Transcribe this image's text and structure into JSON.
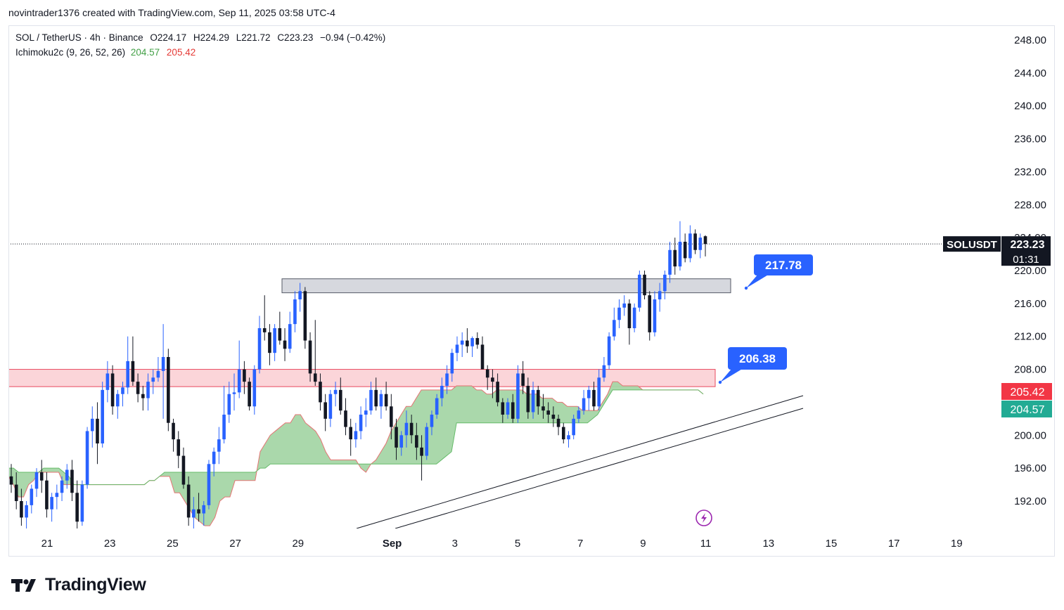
{
  "header": {
    "text": "novintrader1376 created with TradingView.com, Sep 11, 2025 03:58 UTC-4"
  },
  "legend": {
    "symbol": "SOL / TetherUS · 4h · Binance",
    "open": "O224.17",
    "high": "H224.29",
    "low": "L221.72",
    "close": "C223.23",
    "change": "−0.94 (−0.42%)",
    "indicator": "Ichimoku2c (9, 26, 52, 26)",
    "ind_val1": "204.57",
    "ind_val2": "205.42"
  },
  "footer": {
    "brand": "TradingView"
  },
  "chart_data": {
    "type": "candlestick",
    "symbol": "SOLUSDT",
    "timeframe": "4h",
    "x_tick_labels": [
      "21",
      "23",
      "25",
      "27",
      "29",
      "Sep",
      "3",
      "5",
      "7",
      "9",
      "11",
      "13",
      "15",
      "17",
      "19"
    ],
    "y_tick_labels": [
      "248.00",
      "244.00",
      "240.00",
      "236.00",
      "232.00",
      "228.00",
      "224.00",
      "220.00",
      "216.00",
      "212.00",
      "208.00",
      "200.00",
      "196.00",
      "192.00"
    ],
    "ylim": [
      189.5,
      249.5
    ],
    "last_price": {
      "label": "SOLUSDT",
      "value": 223.23,
      "value_text": "223.23",
      "countdown": "01:31"
    },
    "ichimoku_labels": [
      {
        "value": 205.42,
        "text": "205.42",
        "color": "#f23645"
      },
      {
        "value": 204.57,
        "text": "204.57",
        "color": "#22ab94"
      }
    ],
    "zones": [
      {
        "name": "resistance",
        "from_day": 28.75,
        "to_day": 12.25,
        "low": 217.3,
        "high": 219.0,
        "color": "#d1d4dc"
      },
      {
        "name": "support",
        "from_day": 20.0,
        "to_day": 11.35,
        "low": 205.9,
        "high": 208.0,
        "color": "#f8c8cd"
      }
    ],
    "callouts": [
      {
        "text": "217.78",
        "target_day": 12.35,
        "target_value": 218.0
      },
      {
        "text": "206.38",
        "target_day": 11.5,
        "target_value": 206.8
      }
    ],
    "trendlines": [
      {
        "from": [
          "Aug 31.9",
          189.6
        ],
        "to": [
          "Sep 14.3",
          205.5
        ]
      },
      {
        "from": [
          "Sep 1.1",
          189.6
        ],
        "to": [
          "Sep 14.3",
          204.0
        ]
      }
    ],
    "candles": [
      {
        "o": 195.0,
        "h": 196.5,
        "l": 193.0,
        "c": 194.0
      },
      {
        "o": 194.0,
        "h": 195.5,
        "l": 191.0,
        "c": 192.0
      },
      {
        "o": 192.0,
        "h": 193.5,
        "l": 189.0,
        "c": 190.0
      },
      {
        "o": 190.0,
        "h": 192.0,
        "l": 188.5,
        "c": 191.5
      },
      {
        "o": 191.5,
        "h": 194.0,
        "l": 190.5,
        "c": 193.5
      },
      {
        "o": 193.5,
        "h": 196.0,
        "l": 192.5,
        "c": 195.5
      },
      {
        "o": 195.5,
        "h": 197.0,
        "l": 193.0,
        "c": 194.5
      },
      {
        "o": 194.5,
        "h": 195.5,
        "l": 190.0,
        "c": 191.0
      },
      {
        "o": 191.0,
        "h": 193.0,
        "l": 189.5,
        "c": 192.5
      },
      {
        "o": 192.5,
        "h": 194.0,
        "l": 191.0,
        "c": 193.0
      },
      {
        "o": 193.0,
        "h": 195.0,
        "l": 192.0,
        "c": 194.5
      },
      {
        "o": 194.5,
        "h": 196.5,
        "l": 193.5,
        "c": 195.8
      },
      {
        "o": 195.8,
        "h": 197.0,
        "l": 192.0,
        "c": 193.0
      },
      {
        "o": 193.0,
        "h": 194.5,
        "l": 188.5,
        "c": 189.5
      },
      {
        "o": 189.5,
        "h": 194.5,
        "l": 189.0,
        "c": 194.0
      },
      {
        "o": 194.0,
        "h": 201.0,
        "l": 193.5,
        "c": 200.5
      },
      {
        "o": 200.5,
        "h": 203.5,
        "l": 198.5,
        "c": 202.0
      },
      {
        "o": 202.0,
        "h": 204.0,
        "l": 196.5,
        "c": 199.0
      },
      {
        "o": 199.0,
        "h": 206.5,
        "l": 198.5,
        "c": 205.5
      },
      {
        "o": 205.5,
        "h": 209.0,
        "l": 204.0,
        "c": 207.5
      },
      {
        "o": 207.5,
        "h": 208.5,
        "l": 202.5,
        "c": 203.5
      },
      {
        "o": 203.5,
        "h": 205.5,
        "l": 202.0,
        "c": 205.0
      },
      {
        "o": 205.0,
        "h": 206.5,
        "l": 203.5,
        "c": 205.8
      },
      {
        "o": 205.8,
        "h": 212.0,
        "l": 205.0,
        "c": 209.0
      },
      {
        "o": 209.0,
        "h": 212.0,
        "l": 206.0,
        "c": 206.5
      },
      {
        "o": 206.5,
        "h": 207.5,
        "l": 204.0,
        "c": 205.0
      },
      {
        "o": 205.0,
        "h": 206.0,
        "l": 203.0,
        "c": 204.5
      },
      {
        "o": 204.5,
        "h": 207.5,
        "l": 203.0,
        "c": 206.5
      },
      {
        "o": 206.5,
        "h": 208.0,
        "l": 205.0,
        "c": 207.0
      },
      {
        "o": 207.0,
        "h": 209.5,
        "l": 206.5,
        "c": 207.8
      },
      {
        "o": 207.8,
        "h": 213.5,
        "l": 202.0,
        "c": 209.5
      },
      {
        "o": 209.5,
        "h": 210.5,
        "l": 200.5,
        "c": 201.5
      },
      {
        "o": 201.5,
        "h": 202.0,
        "l": 198.0,
        "c": 199.5
      },
      {
        "o": 199.5,
        "h": 200.5,
        "l": 196.0,
        "c": 197.5
      },
      {
        "o": 197.5,
        "h": 198.5,
        "l": 193.5,
        "c": 194.0
      },
      {
        "o": 194.0,
        "h": 195.0,
        "l": 189.0,
        "c": 190.0
      },
      {
        "o": 190.0,
        "h": 192.5,
        "l": 188.0,
        "c": 191.0
      },
      {
        "o": 191.0,
        "h": 193.0,
        "l": 189.5,
        "c": 190.5
      },
      {
        "o": 190.5,
        "h": 192.0,
        "l": 189.0,
        "c": 191.5
      },
      {
        "o": 191.5,
        "h": 197.0,
        "l": 191.0,
        "c": 196.5
      },
      {
        "o": 196.5,
        "h": 198.5,
        "l": 195.0,
        "c": 198.0
      },
      {
        "o": 198.0,
        "h": 201.0,
        "l": 196.5,
        "c": 199.5
      },
      {
        "o": 199.5,
        "h": 206.0,
        "l": 199.0,
        "c": 202.5
      },
      {
        "o": 202.5,
        "h": 206.5,
        "l": 201.5,
        "c": 205.0
      },
      {
        "o": 205.0,
        "h": 207.5,
        "l": 203.0,
        "c": 205.2
      },
      {
        "o": 205.2,
        "h": 211.5,
        "l": 204.5,
        "c": 208.0
      },
      {
        "o": 208.0,
        "h": 209.0,
        "l": 205.0,
        "c": 206.5
      },
      {
        "o": 206.5,
        "h": 207.0,
        "l": 203.0,
        "c": 203.5
      },
      {
        "o": 203.5,
        "h": 208.5,
        "l": 202.5,
        "c": 208.0
      },
      {
        "o": 208.0,
        "h": 214.5,
        "l": 207.5,
        "c": 213.0
      },
      {
        "o": 213.0,
        "h": 217.0,
        "l": 211.5,
        "c": 212.5
      },
      {
        "o": 212.5,
        "h": 213.5,
        "l": 208.5,
        "c": 210.0
      },
      {
        "o": 210.0,
        "h": 213.5,
        "l": 209.0,
        "c": 213.0
      },
      {
        "o": 213.0,
        "h": 215.0,
        "l": 211.0,
        "c": 211.5
      },
      {
        "o": 211.5,
        "h": 213.0,
        "l": 209.0,
        "c": 210.5
      },
      {
        "o": 210.5,
        "h": 215.0,
        "l": 210.0,
        "c": 213.5
      },
      {
        "o": 213.5,
        "h": 217.5,
        "l": 212.5,
        "c": 216.5
      },
      {
        "o": 216.5,
        "h": 218.5,
        "l": 215.0,
        "c": 217.5
      },
      {
        "o": 217.5,
        "h": 218.0,
        "l": 210.5,
        "c": 211.5
      },
      {
        "o": 211.5,
        "h": 212.5,
        "l": 206.5,
        "c": 207.5
      },
      {
        "o": 207.5,
        "h": 214.0,
        "l": 206.0,
        "c": 206.5
      },
      {
        "o": 206.5,
        "h": 207.5,
        "l": 203.0,
        "c": 204.0
      },
      {
        "o": 204.0,
        "h": 205.0,
        "l": 200.5,
        "c": 202.0
      },
      {
        "o": 202.0,
        "h": 205.5,
        "l": 201.0,
        "c": 205.0
      },
      {
        "o": 205.0,
        "h": 206.5,
        "l": 203.5,
        "c": 205.5
      },
      {
        "o": 205.5,
        "h": 207.0,
        "l": 202.5,
        "c": 203.0
      },
      {
        "o": 203.0,
        "h": 204.5,
        "l": 200.0,
        "c": 201.0
      },
      {
        "o": 201.0,
        "h": 202.0,
        "l": 197.5,
        "c": 199.5
      },
      {
        "o": 199.5,
        "h": 201.5,
        "l": 198.5,
        "c": 200.5
      },
      {
        "o": 200.5,
        "h": 203.5,
        "l": 199.5,
        "c": 202.5
      },
      {
        "o": 202.5,
        "h": 204.5,
        "l": 201.0,
        "c": 203.0
      },
      {
        "o": 203.0,
        "h": 206.5,
        "l": 202.5,
        "c": 205.5
      },
      {
        "o": 205.5,
        "h": 207.0,
        "l": 203.0,
        "c": 203.5
      },
      {
        "o": 203.5,
        "h": 205.5,
        "l": 202.0,
        "c": 205.0
      },
      {
        "o": 205.0,
        "h": 206.5,
        "l": 203.0,
        "c": 203.5
      },
      {
        "o": 203.5,
        "h": 205.0,
        "l": 199.5,
        "c": 201.0
      },
      {
        "o": 201.0,
        "h": 202.0,
        "l": 197.0,
        "c": 198.5
      },
      {
        "o": 198.5,
        "h": 200.5,
        "l": 197.5,
        "c": 200.0
      },
      {
        "o": 200.0,
        "h": 203.0,
        "l": 198.5,
        "c": 201.5
      },
      {
        "o": 201.5,
        "h": 202.5,
        "l": 199.0,
        "c": 200.0
      },
      {
        "o": 200.0,
        "h": 201.5,
        "l": 197.0,
        "c": 198.5
      },
      {
        "o": 198.5,
        "h": 200.0,
        "l": 194.5,
        "c": 197.5
      },
      {
        "o": 197.5,
        "h": 201.5,
        "l": 197.0,
        "c": 201.0
      },
      {
        "o": 201.0,
        "h": 203.0,
        "l": 200.0,
        "c": 202.5
      },
      {
        "o": 202.5,
        "h": 205.0,
        "l": 202.0,
        "c": 204.5
      },
      {
        "o": 204.5,
        "h": 207.0,
        "l": 203.5,
        "c": 206.0
      },
      {
        "o": 206.0,
        "h": 208.5,
        "l": 205.0,
        "c": 207.5
      },
      {
        "o": 207.5,
        "h": 210.5,
        "l": 206.5,
        "c": 210.0
      },
      {
        "o": 210.0,
        "h": 212.0,
        "l": 209.0,
        "c": 211.0
      },
      {
        "o": 211.0,
        "h": 212.5,
        "l": 209.5,
        "c": 211.5
      },
      {
        "o": 211.5,
        "h": 213.0,
        "l": 210.0,
        "c": 210.8
      },
      {
        "o": 210.8,
        "h": 212.0,
        "l": 209.5,
        "c": 211.8
      },
      {
        "o": 211.8,
        "h": 212.5,
        "l": 210.5,
        "c": 211.0
      },
      {
        "o": 211.0,
        "h": 212.0,
        "l": 208.5,
        "c": 208.0
      },
      {
        "o": 208.0,
        "h": 208.5,
        "l": 205.5,
        "c": 207.0
      },
      {
        "o": 207.0,
        "h": 208.0,
        "l": 204.5,
        "c": 206.5
      },
      {
        "o": 206.5,
        "h": 207.5,
        "l": 203.5,
        "c": 204.0
      },
      {
        "o": 204.0,
        "h": 204.5,
        "l": 201.5,
        "c": 202.5
      },
      {
        "o": 202.5,
        "h": 204.5,
        "l": 202.0,
        "c": 204.0
      },
      {
        "o": 204.0,
        "h": 205.0,
        "l": 201.5,
        "c": 202.0
      },
      {
        "o": 202.0,
        "h": 208.5,
        "l": 201.5,
        "c": 207.5
      },
      {
        "o": 207.5,
        "h": 209.0,
        "l": 205.0,
        "c": 206.0
      },
      {
        "o": 206.0,
        "h": 207.0,
        "l": 202.0,
        "c": 202.8
      },
      {
        "o": 202.8,
        "h": 206.5,
        "l": 202.0,
        "c": 205.5
      },
      {
        "o": 205.5,
        "h": 206.0,
        "l": 202.5,
        "c": 203.5
      },
      {
        "o": 203.5,
        "h": 205.0,
        "l": 202.0,
        "c": 203.0
      },
      {
        "o": 203.0,
        "h": 204.0,
        "l": 201.5,
        "c": 202.5
      },
      {
        "o": 202.5,
        "h": 203.5,
        "l": 201.0,
        "c": 202.0
      },
      {
        "o": 202.0,
        "h": 202.5,
        "l": 200.0,
        "c": 201.0
      },
      {
        "o": 201.0,
        "h": 201.5,
        "l": 199.0,
        "c": 199.5
      },
      {
        "o": 199.5,
        "h": 200.5,
        "l": 198.5,
        "c": 200.0
      },
      {
        "o": 200.0,
        "h": 202.5,
        "l": 199.5,
        "c": 202.0
      },
      {
        "o": 202.0,
        "h": 203.5,
        "l": 201.5,
        "c": 203.0
      },
      {
        "o": 203.0,
        "h": 205.5,
        "l": 202.5,
        "c": 204.5
      },
      {
        "o": 204.5,
        "h": 206.0,
        "l": 203.0,
        "c": 205.5
      },
      {
        "o": 205.5,
        "h": 206.5,
        "l": 203.0,
        "c": 203.5
      },
      {
        "o": 203.5,
        "h": 208.0,
        "l": 203.0,
        "c": 207.0
      },
      {
        "o": 207.0,
        "h": 209.5,
        "l": 206.5,
        "c": 208.5
      },
      {
        "o": 208.5,
        "h": 212.5,
        "l": 208.0,
        "c": 212.0
      },
      {
        "o": 212.0,
        "h": 215.5,
        "l": 211.5,
        "c": 214.0
      },
      {
        "o": 214.0,
        "h": 216.5,
        "l": 213.0,
        "c": 215.5
      },
      {
        "o": 215.5,
        "h": 217.0,
        "l": 214.5,
        "c": 216.0
      },
      {
        "o": 216.0,
        "h": 216.5,
        "l": 211.0,
        "c": 213.0
      },
      {
        "o": 213.0,
        "h": 216.0,
        "l": 212.5,
        "c": 215.5
      },
      {
        "o": 215.5,
        "h": 220.0,
        "l": 215.0,
        "c": 219.5
      },
      {
        "o": 219.5,
        "h": 220.0,
        "l": 216.5,
        "c": 217.0
      },
      {
        "o": 217.0,
        "h": 217.5,
        "l": 211.5,
        "c": 212.5
      },
      {
        "o": 212.5,
        "h": 217.5,
        "l": 212.0,
        "c": 216.5
      },
      {
        "o": 216.5,
        "h": 218.5,
        "l": 215.0,
        "c": 217.5
      },
      {
        "o": 217.5,
        "h": 220.0,
        "l": 216.5,
        "c": 219.5
      },
      {
        "o": 219.5,
        "h": 223.5,
        "l": 218.5,
        "c": 222.5
      },
      {
        "o": 222.5,
        "h": 224.0,
        "l": 219.5,
        "c": 220.5
      },
      {
        "o": 220.5,
        "h": 226.0,
        "l": 220.0,
        "c": 223.5
      },
      {
        "o": 223.5,
        "h": 224.5,
        "l": 221.0,
        "c": 221.5
      },
      {
        "o": 221.5,
        "h": 225.5,
        "l": 221.0,
        "c": 224.5
      },
      {
        "o": 224.5,
        "h": 225.0,
        "l": 222.0,
        "c": 222.5
      },
      {
        "o": 222.5,
        "h": 224.5,
        "l": 221.5,
        "c": 224.0
      },
      {
        "o": 224.17,
        "h": 224.29,
        "l": 221.72,
        "c": 223.23
      }
    ],
    "cloud_a": [
      195.0,
      194.0,
      192.5,
      192.5,
      194.0,
      194.5,
      195.5,
      195.5,
      195.5,
      195.5,
      195.5,
      194.0,
      194.0,
      194.0,
      194.0,
      194.0,
      194.0,
      194.0,
      194.0,
      194.0,
      194.0,
      194.0,
      194.0,
      194.0,
      194.0,
      194.0,
      194.0,
      194.0,
      194.5,
      194.5,
      195.0,
      195.0,
      195.0,
      193.0,
      193.0,
      192.0,
      191.0,
      190.0,
      189.5,
      189.0,
      189.0,
      190.0,
      192.0,
      192.5,
      192.5,
      194.5,
      194.5,
      194.5,
      194.5,
      194.5,
      198.0,
      199.0,
      200.0,
      200.5,
      201.0,
      201.5,
      201.5,
      202.5,
      202.5,
      201.5,
      201.0,
      200.5,
      199.5,
      198.0,
      197.0,
      197.0,
      197.0,
      197.0,
      197.0,
      197.0,
      196.0,
      195.5,
      196.5,
      197.0,
      198.0,
      199.0,
      200.5,
      201.5,
      202.5,
      203.5,
      203.5,
      204.5,
      205.5,
      205.5,
      205.5,
      205.5,
      205.5,
      205.5,
      205.5,
      206.0,
      206.0,
      206.0,
      206.0,
      205.5,
      205.5,
      205.0,
      205.0,
      205.5,
      205.5,
      205.5,
      205.5,
      205.5,
      205.5,
      205.0,
      205.0,
      205.0,
      204.5,
      204.5,
      204.5,
      204.0,
      204.0,
      203.5,
      203.5,
      203.5,
      203.0,
      203.0,
      203.0,
      203.0,
      204.0,
      205.0,
      206.5,
      206.5,
      206.0,
      206.0,
      206.0,
      206.0,
      205.5,
      205.5,
      205.5,
      205.5,
      205.5,
      205.5,
      205.5,
      205.5,
      205.5,
      205.5,
      205.5,
      205.5,
      205.0
    ],
    "cloud_b": [
      196.0,
      196.0,
      195.5,
      195.5,
      195.5,
      195.5,
      195.5,
      196.0,
      196.0,
      196.0,
      196.0,
      195.5,
      195.0,
      194.0,
      194.0,
      194.0,
      194.0,
      194.0,
      194.0,
      194.0,
      194.0,
      194.0,
      194.0,
      194.0,
      194.0,
      194.0,
      194.0,
      194.0,
      194.5,
      194.5,
      195.0,
      195.5,
      195.5,
      195.5,
      195.5,
      195.5,
      195.5,
      195.5,
      195.5,
      195.5,
      195.5,
      195.5,
      195.5,
      195.5,
      195.5,
      195.5,
      195.5,
      195.5,
      195.5,
      195.5,
      196.0,
      196.0,
      196.5,
      196.5,
      196.5,
      196.5,
      196.5,
      196.5,
      196.5,
      196.5,
      196.5,
      196.5,
      196.5,
      196.5,
      196.5,
      196.5,
      196.5,
      196.5,
      196.5,
      196.5,
      196.5,
      196.5,
      196.5,
      196.5,
      196.5,
      196.5,
      196.5,
      196.5,
      196.5,
      196.5,
      196.5,
      196.5,
      196.5,
      196.5,
      196.5,
      196.5,
      197.0,
      197.5,
      198.0,
      201.5,
      201.5,
      201.5,
      201.5,
      201.5,
      201.5,
      201.5,
      201.5,
      201.5,
      201.5,
      201.5,
      201.5,
      201.5,
      201.5,
      201.5,
      201.5,
      201.5,
      201.5,
      201.5,
      201.5,
      201.5,
      201.5,
      201.5,
      201.5,
      201.5,
      201.5,
      201.5,
      202.0,
      202.5,
      203.5,
      204.5,
      205.5,
      205.5,
      205.5,
      205.5,
      205.5,
      205.5,
      205.5,
      205.5,
      205.5,
      205.5,
      205.5,
      205.5,
      205.5,
      205.5,
      205.5,
      205.5,
      205.5,
      205.5,
      205.0
    ],
    "colors": {
      "up": "#2962ff",
      "down": "#131722",
      "cloud_fill": "#a5d6a7",
      "cloud_line": "#e57373"
    }
  }
}
